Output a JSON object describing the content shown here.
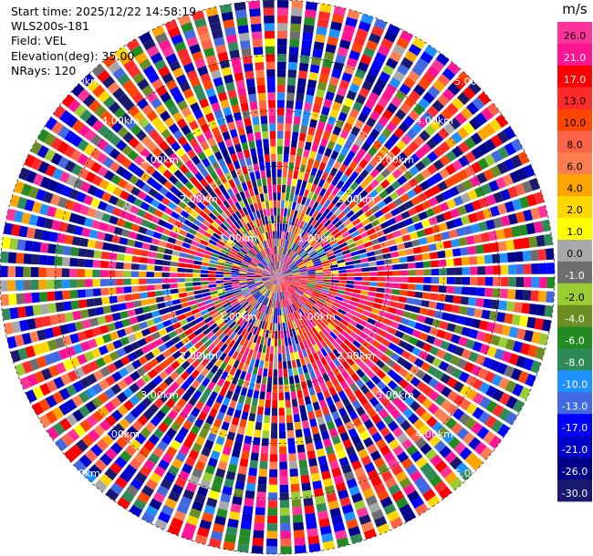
{
  "header": {
    "start_time": "Start time: 2025/12/22 14:58:19",
    "instrument": "WLS200s-181",
    "field": "Field: VEL",
    "elevation": "Elevation(deg): 35.00",
    "nrays": "NRays: 120"
  },
  "colorbar": {
    "unit": "m/s",
    "ticks": [
      "26.0",
      "21.0",
      "17.0",
      "13.0",
      "10.0",
      "8.0",
      "6.0",
      "4.0",
      "2.0",
      "1.0",
      "0.0",
      "-1.0",
      "-2.0",
      "-4.0",
      "-6.0",
      "-8.0",
      "-10.0",
      "-13.0",
      "-17.0",
      "-21.0",
      "-26.0",
      "-30.0"
    ],
    "colors": [
      "#ff3399",
      "#ff1493",
      "#ff0000",
      "#ff2b2b",
      "#ff4500",
      "#ff6347",
      "#ff7f50",
      "#ffa500",
      "#ffd700",
      "#ffff00",
      "#a8a8a8",
      "#6e6e6e",
      "#9acd32",
      "#6b8e23",
      "#228b22",
      "#2e8b57",
      "#1e90ff",
      "#4169e1",
      "#0000ff",
      "#0000cd",
      "#00008b",
      "#191970"
    ]
  },
  "chart_data": {
    "type": "heatmap",
    "field": "VEL",
    "units": "m/s",
    "elevation_deg": 35.0,
    "n_rays": 120,
    "range_rings": [
      {
        "label": "1.00km",
        "range_km": 1.0
      },
      {
        "label": "2.00km",
        "range_km": 2.0
      },
      {
        "label": "3.00km",
        "range_km": 3.0
      },
      {
        "label": "4.00km",
        "range_km": 4.0
      },
      {
        "label": "5.00km",
        "range_km": 5.0
      }
    ],
    "vmin": -30.0,
    "vmax": 26.0,
    "pattern": "mostly noise-like mixed velocities; coherent positive (red/pink) region to the east-southeast within ~2 km"
  }
}
